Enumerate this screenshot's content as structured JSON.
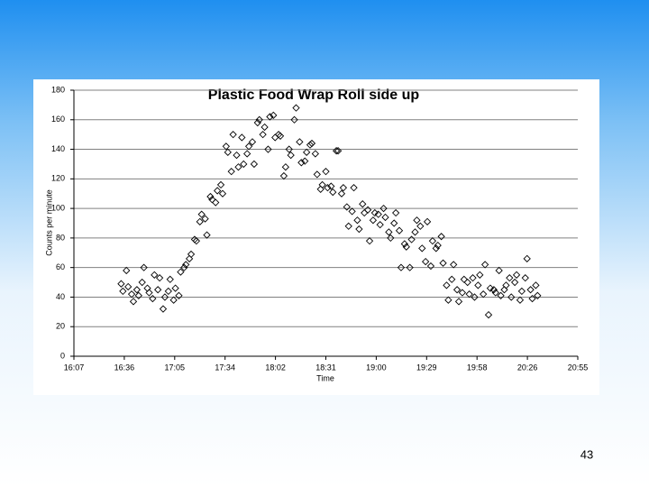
{
  "chart_data": {
    "type": "scatter",
    "title": "Plastic Food Wrap Roll side up",
    "x_label": "Time",
    "y_label": "Counts per minute",
    "xlim": [
      967,
      1255
    ],
    "xticks": [
      {
        "value": 967,
        "label": "16:07"
      },
      {
        "value": 995.8,
        "label": "16:36"
      },
      {
        "value": 1024.6,
        "label": "17:05"
      },
      {
        "value": 1053.4,
        "label": "17:34"
      },
      {
        "value": 1082.2,
        "label": "18:02"
      },
      {
        "value": 1111,
        "label": "18:31"
      },
      {
        "value": 1139.8,
        "label": "19:00"
      },
      {
        "value": 1168.6,
        "label": "19:29"
      },
      {
        "value": 1197.4,
        "label": "19:58"
      },
      {
        "value": 1226.2,
        "label": "20:26"
      },
      {
        "value": 1255,
        "label": "20:55"
      }
    ],
    "ylim": [
      0,
      180
    ],
    "yticks": [
      0,
      20,
      40,
      60,
      80,
      100,
      120,
      140,
      160,
      180
    ],
    "grid": true,
    "color": "#000000",
    "x": [
      994,
      995,
      997,
      998,
      1000,
      1001,
      1003,
      1004,
      1006,
      1007,
      1009,
      1010,
      1012,
      1013,
      1015,
      1016,
      1018,
      1019,
      1021,
      1022,
      1024,
      1025,
      1027,
      1028,
      1030,
      1031,
      1033,
      1034,
      1036,
      1037,
      1039,
      1040,
      1042,
      1043,
      1045,
      1046,
      1048,
      1049,
      1051,
      1052,
      1054,
      1055,
      1057,
      1058,
      1060,
      1061,
      1063,
      1064,
      1066,
      1067,
      1069,
      1070,
      1072,
      1073,
      1075,
      1076,
      1078,
      1079,
      1081,
      1082,
      1084,
      1085,
      1087,
      1088,
      1090,
      1091,
      1093,
      1094,
      1096,
      1097,
      1099,
      1100,
      1102,
      1103,
      1105,
      1106,
      1108,
      1109,
      1111,
      1112,
      1114,
      1115,
      1117,
      1118,
      1120,
      1121,
      1123,
      1124,
      1126,
      1127,
      1129,
      1130,
      1132,
      1133,
      1135,
      1136,
      1138,
      1139,
      1141,
      1142,
      1144,
      1145,
      1147,
      1148,
      1150,
      1151,
      1153,
      1154,
      1156,
      1157,
      1159,
      1160,
      1162,
      1163,
      1165,
      1166,
      1168,
      1169,
      1171,
      1172,
      1174,
      1175,
      1177,
      1178,
      1180,
      1181,
      1183,
      1184,
      1186,
      1187,
      1189,
      1190,
      1192,
      1193,
      1195,
      1196,
      1198,
      1199,
      1201,
      1202,
      1204,
      1205,
      1207,
      1208,
      1210,
      1211,
      1213,
      1214,
      1216,
      1217,
      1219,
      1220,
      1222,
      1223,
      1225,
      1226,
      1228,
      1229,
      1231,
      1232
    ],
    "values": [
      49,
      44,
      58,
      47,
      42,
      37,
      45,
      41,
      50,
      60,
      46,
      43,
      39,
      55,
      45,
      53,
      32,
      40,
      44,
      52,
      38,
      46,
      41,
      57,
      60,
      62,
      66,
      69,
      79,
      78,
      91,
      96,
      93,
      82,
      108,
      106,
      104,
      112,
      116,
      110,
      142,
      138,
      125,
      150,
      136,
      128,
      148,
      130,
      137,
      142,
      145,
      130,
      158,
      160,
      150,
      155,
      140,
      162,
      163,
      148,
      150,
      149,
      122,
      128,
      140,
      136,
      160,
      168,
      145,
      131,
      132,
      138,
      143,
      144,
      137,
      123,
      113,
      116,
      125,
      114,
      115,
      111,
      139,
      139,
      110,
      114,
      101,
      88,
      98,
      114,
      92,
      86,
      103,
      97,
      99,
      78,
      92,
      97,
      96,
      89,
      100,
      94,
      84,
      80,
      90,
      97,
      85,
      60,
      76,
      74,
      60,
      79,
      84,
      92,
      88,
      73,
      64,
      91,
      61,
      78,
      73,
      75,
      81,
      63,
      48,
      38,
      52,
      62,
      45,
      37,
      43,
      52,
      50,
      42,
      53,
      40,
      48,
      55,
      42,
      62,
      28,
      46,
      45,
      43,
      58,
      41,
      45,
      48,
      53,
      40,
      50,
      55,
      38,
      44,
      53,
      66,
      45,
      39,
      48,
      41
    ]
  },
  "page_number": "43"
}
